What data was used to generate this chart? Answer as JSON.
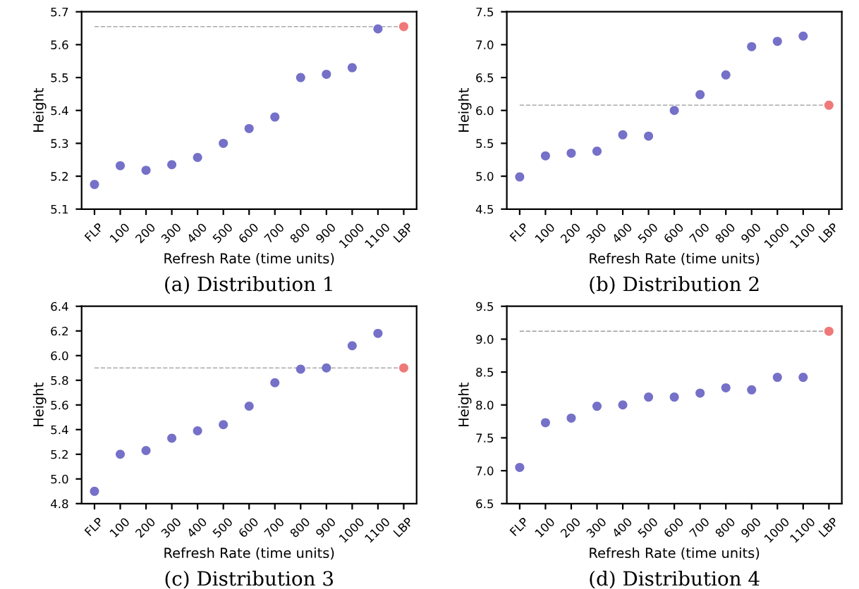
{
  "chart_data": [
    {
      "type": "scatter",
      "xlabel": "Refresh Rate (time units)",
      "ylabel": "Height",
      "annotations": [
        "(a) Distribution 1"
      ],
      "categories": [
        "FLP",
        "100",
        "200",
        "300",
        "400",
        "500",
        "600",
        "700",
        "800",
        "900",
        "1000",
        "1100",
        "LBP"
      ],
      "ylim": [
        5.1,
        5.7
      ],
      "yticks": [
        5.1,
        5.2,
        5.3,
        5.4,
        5.5,
        5.6,
        5.7
      ],
      "grid": false,
      "marker": "circle",
      "series": [
        {
          "color": "#7570c8",
          "values": [
            5.175,
            5.232,
            5.218,
            5.235,
            5.257,
            5.3,
            5.345,
            5.38,
            5.5,
            5.51,
            5.53,
            5.648,
            null
          ]
        },
        {
          "color": "#f07878",
          "values": [
            null,
            null,
            null,
            null,
            null,
            null,
            null,
            null,
            null,
            null,
            null,
            null,
            5.655
          ]
        }
      ],
      "ref_lines": [
        {
          "axis": "y",
          "value": 5.655,
          "color": "#aaaaaa",
          "line_style": "dashed"
        }
      ]
    },
    {
      "type": "scatter",
      "xlabel": "Refresh Rate (time units)",
      "ylabel": "Height",
      "annotations": [
        "(b) Distribution 2"
      ],
      "categories": [
        "FLP",
        "100",
        "200",
        "300",
        "400",
        "500",
        "600",
        "700",
        "800",
        "900",
        "1000",
        "1100",
        "LBP"
      ],
      "ylim": [
        4.5,
        7.5
      ],
      "yticks": [
        {
          "value": 4.5,
          "label": "4.5"
        },
        {
          "value": 5.0,
          "label": "5.0"
        },
        {
          "value": 5.5,
          "label": "5.5"
        },
        {
          "value": 6.0,
          "label": "6.0"
        },
        {
          "value": 6.5,
          "label": "6.5"
        },
        {
          "value": 7.0,
          "label": "7.0"
        },
        {
          "value": 7.5,
          "label": "7.5"
        }
      ],
      "grid": false,
      "marker": "circle",
      "series": [
        {
          "color": "#7570c8",
          "values": [
            4.99,
            5.31,
            5.35,
            5.38,
            5.63,
            5.61,
            6.0,
            6.24,
            6.54,
            6.97,
            7.05,
            7.13,
            null
          ]
        },
        {
          "color": "#f07878",
          "values": [
            null,
            null,
            null,
            null,
            null,
            null,
            null,
            null,
            null,
            null,
            null,
            null,
            6.08
          ]
        }
      ],
      "ref_lines": [
        {
          "axis": "y",
          "value": 6.08,
          "color": "#aaaaaa",
          "line_style": "dashed"
        }
      ]
    },
    {
      "type": "scatter",
      "xlabel": "Refresh Rate (time units)",
      "ylabel": "Height",
      "annotations": [
        "(c) Distribution 3"
      ],
      "categories": [
        "FLP",
        "100",
        "200",
        "300",
        "400",
        "500",
        "600",
        "700",
        "800",
        "900",
        "1000",
        "1100",
        "LBP"
      ],
      "ylim": [
        4.8,
        6.4
      ],
      "yticks": [
        {
          "value": 4.8,
          "label": "4.8"
        },
        {
          "value": 5.0,
          "label": "5.0"
        },
        {
          "value": 5.2,
          "label": "5.2"
        },
        {
          "value": 5.4,
          "label": "5.4"
        },
        {
          "value": 5.6,
          "label": "5.6"
        },
        {
          "value": 5.8,
          "label": "5.8"
        },
        {
          "value": 6.0,
          "label": "6.0"
        },
        {
          "value": 6.2,
          "label": "6.2"
        },
        {
          "value": 6.4,
          "label": "6.4"
        }
      ],
      "grid": false,
      "marker": "circle",
      "series": [
        {
          "color": "#7570c8",
          "values": [
            4.9,
            5.2,
            5.23,
            5.33,
            5.39,
            5.44,
            5.59,
            5.78,
            5.89,
            5.9,
            6.08,
            6.18,
            null
          ]
        },
        {
          "color": "#f07878",
          "values": [
            null,
            null,
            null,
            null,
            null,
            null,
            null,
            null,
            null,
            null,
            null,
            null,
            5.9
          ]
        }
      ],
      "ref_lines": [
        {
          "axis": "y",
          "value": 5.9,
          "color": "#aaaaaa",
          "line_style": "dashed"
        }
      ]
    },
    {
      "type": "scatter",
      "xlabel": "Refresh Rate (time units)",
      "ylabel": "Height",
      "annotations": [
        "(d) Distribution 4"
      ],
      "categories": [
        "FLP",
        "100",
        "200",
        "300",
        "400",
        "500",
        "600",
        "700",
        "800",
        "900",
        "1000",
        "1100",
        "LBP"
      ],
      "ylim": [
        6.5,
        9.5
      ],
      "yticks": [
        {
          "value": 6.5,
          "label": "6.5"
        },
        {
          "value": 7.0,
          "label": "7.0"
        },
        {
          "value": 7.5,
          "label": "7.5"
        },
        {
          "value": 8.0,
          "label": "8.0"
        },
        {
          "value": 8.5,
          "label": "8.5"
        },
        {
          "value": 9.0,
          "label": "9.0"
        },
        {
          "value": 9.5,
          "label": "9.5"
        }
      ],
      "grid": false,
      "marker": "circle",
      "series": [
        {
          "color": "#7570c8",
          "values": [
            7.05,
            7.73,
            7.8,
            7.98,
            8.0,
            8.12,
            8.12,
            8.18,
            8.26,
            8.23,
            8.42,
            8.42,
            null
          ]
        },
        {
          "color": "#f07878",
          "values": [
            null,
            null,
            null,
            null,
            null,
            null,
            null,
            null,
            null,
            null,
            null,
            null,
            9.12
          ]
        }
      ],
      "ref_lines": [
        {
          "axis": "y",
          "value": 9.12,
          "color": "#aaaaaa",
          "line_style": "dashed"
        }
      ]
    }
  ]
}
